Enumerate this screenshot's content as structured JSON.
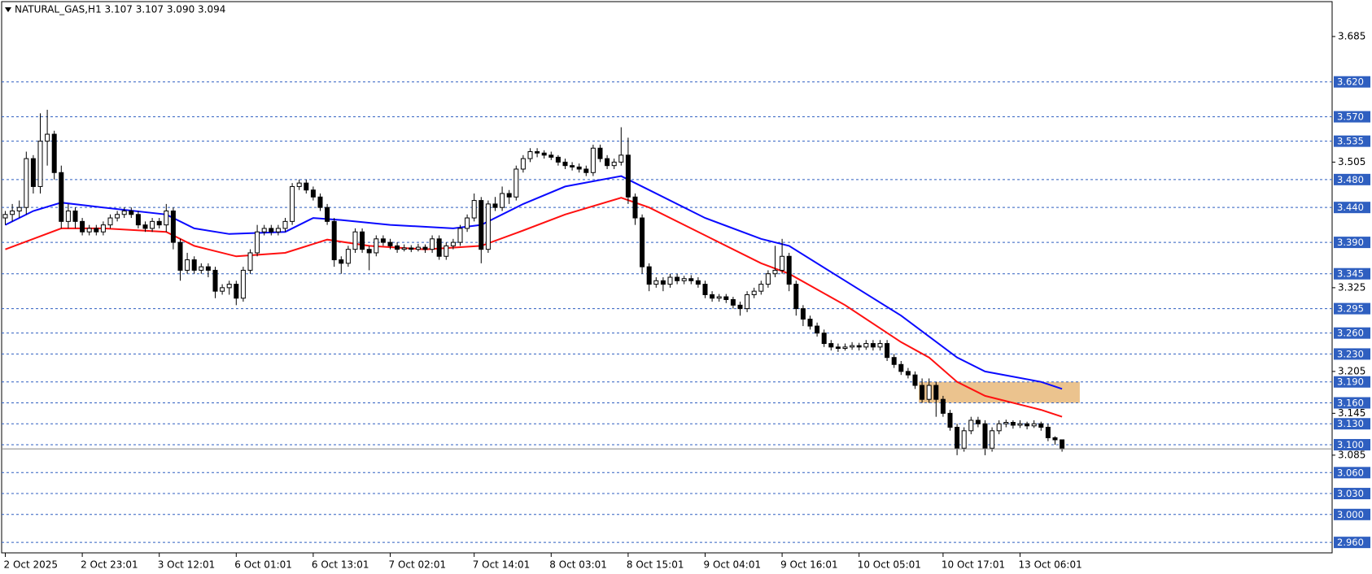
{
  "chart_data": {
    "type": "candlestick",
    "title": "NATURAL_GAS,H1 3.107 3.107 3.090 3.094",
    "ylim": [
      2.945,
      3.735
    ],
    "yticks": [
      3.085,
      3.145,
      3.205,
      3.325,
      3.505,
      3.685
    ],
    "levels": [
      {
        "value": 3.62,
        "label": "3.620"
      },
      {
        "value": 3.57,
        "label": "3.570"
      },
      3.535,
      {
        "value": 3.48,
        "label": "3.480"
      },
      {
        "value": 3.44,
        "label": "3.440"
      },
      {
        "value": 3.39,
        "label": "3.390"
      },
      3.345,
      3.295,
      {
        "value": 3.26,
        "label": "3.260"
      },
      {
        "value": 3.23,
        "label": "3.230"
      },
      {
        "value": 3.19,
        "label": "3.190"
      },
      {
        "value": 3.16,
        "label": "3.160"
      },
      {
        "value": 3.13,
        "label": "3.130"
      },
      {
        "value": 3.1,
        "label": "3.100"
      },
      {
        "value": 3.06,
        "label": "3.060"
      },
      {
        "value": 3.03,
        "label": "3.030"
      },
      {
        "value": 3,
        "label": "3.000"
      },
      {
        "value": 2.96,
        "label": "2.960"
      }
    ],
    "level_color": "#2f5fc0",
    "xticks": [
      {
        "value": 0,
        "label": "2 Oct 2025"
      },
      {
        "value": 11,
        "label": "2 Oct 23:01"
      },
      {
        "value": 22,
        "label": "3 Oct 12:01"
      },
      {
        "value": 33,
        "label": "6 Oct 01:01"
      },
      {
        "value": 44,
        "label": "6 Oct 13:01"
      },
      {
        "value": 55,
        "label": "7 Oct 02:01"
      },
      {
        "value": 67,
        "label": "7 Oct 14:01"
      },
      {
        "value": 78,
        "label": "8 Oct 03:01"
      },
      {
        "value": 89,
        "label": "8 Oct 15:01"
      },
      {
        "value": 100,
        "label": "9 Oct 04:01"
      },
      {
        "value": 111,
        "label": "9 Oct 16:01"
      },
      {
        "value": 122,
        "label": "10 Oct 05:01"
      },
      {
        "value": 134,
        "label": "10 Oct 17:01"
      },
      {
        "value": 145,
        "label": "13 Oct 06:01"
      }
    ],
    "zone": {
      "low": 3.16,
      "high": 3.19,
      "x_start": 131,
      "x_end": 154,
      "color": "#e8b87a"
    },
    "lines": [
      {
        "color": "#0a0aff",
        "x": [
          0,
          4,
          8,
          14,
          23,
          27,
          32,
          40,
          44,
          48,
          55,
          64,
          68,
          74,
          80,
          88,
          92,
          100,
          108,
          112,
          120,
          128,
          132,
          136,
          140,
          148,
          151
        ],
        "values": [
          3.415,
          3.435,
          3.447,
          3.44,
          3.43,
          3.41,
          3.402,
          3.405,
          3.425,
          3.422,
          3.415,
          3.41,
          3.415,
          3.445,
          3.47,
          3.485,
          3.465,
          3.425,
          3.395,
          3.385,
          3.335,
          3.285,
          3.255,
          3.225,
          3.205,
          3.19,
          3.18
        ]
      },
      {
        "color": "#ff1010",
        "x": [
          0,
          4,
          8,
          14,
          23,
          27,
          33,
          40,
          46,
          52,
          60,
          68,
          74,
          80,
          88,
          92,
          100,
          108,
          112,
          120,
          128,
          132,
          136,
          140,
          148,
          151
        ],
        "values": [
          3.38,
          3.395,
          3.41,
          3.41,
          3.405,
          3.385,
          3.37,
          3.375,
          3.394,
          3.385,
          3.38,
          3.385,
          3.407,
          3.43,
          3.454,
          3.44,
          3.4,
          3.36,
          3.345,
          3.3,
          3.247,
          3.225,
          3.19,
          3.17,
          3.15,
          3.14
        ]
      }
    ],
    "ohlc": [
      [
        3.425,
        3.435,
        3.415,
        3.43
      ],
      [
        3.43,
        3.445,
        3.42,
        3.435
      ],
      [
        3.435,
        3.45,
        3.425,
        3.44
      ],
      [
        3.44,
        3.52,
        3.43,
        3.51
      ],
      [
        3.51,
        3.515,
        3.46,
        3.47
      ],
      [
        3.47,
        3.575,
        3.46,
        3.535
      ],
      [
        3.535,
        3.58,
        3.5,
        3.545
      ],
      [
        3.545,
        3.55,
        3.48,
        3.49
      ],
      [
        3.49,
        3.5,
        3.41,
        3.42
      ],
      [
        3.42,
        3.445,
        3.41,
        3.435
      ],
      [
        3.435,
        3.44,
        3.41,
        3.42
      ],
      [
        3.42,
        3.425,
        3.4,
        3.405
      ],
      [
        3.405,
        3.415,
        3.4,
        3.41
      ],
      [
        3.41,
        3.415,
        3.4,
        3.405
      ],
      [
        3.405,
        3.42,
        3.4,
        3.415
      ],
      [
        3.415,
        3.43,
        3.41,
        3.425
      ],
      [
        3.425,
        3.435,
        3.42,
        3.43
      ],
      [
        3.43,
        3.44,
        3.425,
        3.435
      ],
      [
        3.435,
        3.44,
        3.425,
        3.43
      ],
      [
        3.43,
        3.435,
        3.41,
        3.415
      ],
      [
        3.415,
        3.42,
        3.405,
        3.41
      ],
      [
        3.41,
        3.425,
        3.405,
        3.42
      ],
      [
        3.42,
        3.425,
        3.41,
        3.415
      ],
      [
        3.415,
        3.445,
        3.405,
        3.435
      ],
      [
        3.435,
        3.44,
        3.38,
        3.39
      ],
      [
        3.39,
        3.395,
        3.335,
        3.35
      ],
      [
        3.35,
        3.375,
        3.345,
        3.365
      ],
      [
        3.365,
        3.37,
        3.345,
        3.35
      ],
      [
        3.35,
        3.36,
        3.345,
        3.355
      ],
      [
        3.355,
        3.36,
        3.34,
        3.35
      ],
      [
        3.35,
        3.355,
        3.31,
        3.32
      ],
      [
        3.32,
        3.33,
        3.315,
        3.325
      ],
      [
        3.325,
        3.335,
        3.315,
        3.33
      ],
      [
        3.33,
        3.335,
        3.3,
        3.31
      ],
      [
        3.31,
        3.355,
        3.305,
        3.35
      ],
      [
        3.35,
        3.38,
        3.345,
        3.375
      ],
      [
        3.375,
        3.415,
        3.37,
        3.405
      ],
      [
        3.405,
        3.415,
        3.4,
        3.41
      ],
      [
        3.41,
        3.415,
        3.4,
        3.405
      ],
      [
        3.405,
        3.415,
        3.4,
        3.41
      ],
      [
        3.41,
        3.425,
        3.405,
        3.42
      ],
      [
        3.42,
        3.475,
        3.415,
        3.47
      ],
      [
        3.47,
        3.48,
        3.465,
        3.475
      ],
      [
        3.475,
        3.48,
        3.46,
        3.465
      ],
      [
        3.465,
        3.47,
        3.45,
        3.455
      ],
      [
        3.455,
        3.46,
        3.435,
        3.44
      ],
      [
        3.44,
        3.445,
        3.415,
        3.42
      ],
      [
        3.42,
        3.425,
        3.355,
        3.365
      ],
      [
        3.365,
        3.37,
        3.345,
        3.36
      ],
      [
        3.36,
        3.385,
        3.355,
        3.38
      ],
      [
        3.38,
        3.41,
        3.375,
        3.405
      ],
      [
        3.405,
        3.41,
        3.375,
        3.38
      ],
      [
        3.38,
        3.385,
        3.35,
        3.375
      ],
      [
        3.375,
        3.4,
        3.37,
        3.395
      ],
      [
        3.395,
        3.4,
        3.385,
        3.39
      ],
      [
        3.39,
        3.395,
        3.38,
        3.385
      ],
      [
        3.385,
        3.39,
        3.375,
        3.38
      ],
      [
        3.38,
        3.387,
        3.377,
        3.382
      ],
      [
        3.382,
        3.386,
        3.376,
        3.38
      ],
      [
        3.38,
        3.388,
        3.377,
        3.383
      ],
      [
        3.383,
        3.387,
        3.375,
        3.38
      ],
      [
        3.38,
        3.4,
        3.375,
        3.395
      ],
      [
        3.395,
        3.4,
        3.365,
        3.37
      ],
      [
        3.37,
        3.39,
        3.365,
        3.385
      ],
      [
        3.385,
        3.395,
        3.38,
        3.39
      ],
      [
        3.39,
        3.415,
        3.385,
        3.41
      ],
      [
        3.41,
        3.43,
        3.405,
        3.425
      ],
      [
        3.425,
        3.46,
        3.42,
        3.45
      ],
      [
        3.45,
        3.455,
        3.36,
        3.38
      ],
      [
        3.38,
        3.45,
        3.375,
        3.445
      ],
      [
        3.445,
        3.455,
        3.435,
        3.44
      ],
      [
        3.44,
        3.47,
        3.435,
        3.46
      ],
      [
        3.46,
        3.465,
        3.445,
        3.455
      ],
      [
        3.455,
        3.5,
        3.45,
        3.495
      ],
      [
        3.495,
        3.515,
        3.49,
        3.51
      ],
      [
        3.51,
        3.525,
        3.505,
        3.52
      ],
      [
        3.52,
        3.525,
        3.512,
        3.518
      ],
      [
        3.518,
        3.522,
        3.51,
        3.515
      ],
      [
        3.515,
        3.52,
        3.508,
        3.512
      ],
      [
        3.512,
        3.515,
        3.5,
        3.505
      ],
      [
        3.505,
        3.51,
        3.495,
        3.5
      ],
      [
        3.5,
        3.505,
        3.493,
        3.498
      ],
      [
        3.498,
        3.503,
        3.49,
        3.495
      ],
      [
        3.495,
        3.5,
        3.485,
        3.49
      ],
      [
        3.49,
        3.53,
        3.485,
        3.525
      ],
      [
        3.525,
        3.53,
        3.505,
        3.51
      ],
      [
        3.51,
        3.515,
        3.495,
        3.5
      ],
      [
        3.5,
        3.51,
        3.495,
        3.505
      ],
      [
        3.505,
        3.555,
        3.5,
        3.515
      ],
      [
        3.515,
        3.54,
        3.445,
        3.455
      ],
      [
        3.455,
        3.46,
        3.415,
        3.425
      ],
      [
        3.425,
        3.43,
        3.345,
        3.355
      ],
      [
        3.355,
        3.36,
        3.32,
        3.33
      ],
      [
        3.33,
        3.34,
        3.325,
        3.335
      ],
      [
        3.335,
        3.34,
        3.32,
        3.33
      ],
      [
        3.33,
        3.345,
        3.325,
        3.34
      ],
      [
        3.34,
        3.345,
        3.33,
        3.335
      ],
      [
        3.335,
        3.342,
        3.33,
        3.338
      ],
      [
        3.338,
        3.343,
        3.33,
        3.335
      ],
      [
        3.335,
        3.34,
        3.325,
        3.33
      ],
      [
        3.33,
        3.335,
        3.31,
        3.315
      ],
      [
        3.315,
        3.32,
        3.305,
        3.31
      ],
      [
        3.31,
        3.316,
        3.305,
        3.312
      ],
      [
        3.312,
        3.316,
        3.303,
        3.308
      ],
      [
        3.308,
        3.312,
        3.295,
        3.3
      ],
      [
        3.3,
        3.305,
        3.285,
        3.295
      ],
      [
        3.295,
        3.32,
        3.29,
        3.315
      ],
      [
        3.315,
        3.325,
        3.31,
        3.32
      ],
      [
        3.32,
        3.335,
        3.315,
        3.33
      ],
      [
        3.33,
        3.35,
        3.325,
        3.345
      ],
      [
        3.345,
        3.385,
        3.34,
        3.35
      ],
      [
        3.35,
        3.395,
        3.345,
        3.37
      ],
      [
        3.37,
        3.375,
        3.32,
        3.33
      ],
      [
        3.33,
        3.335,
        3.285,
        3.295
      ],
      [
        3.295,
        3.3,
        3.27,
        3.28
      ],
      [
        3.28,
        3.285,
        3.265,
        3.27
      ],
      [
        3.27,
        3.275,
        3.255,
        3.26
      ],
      [
        3.26,
        3.265,
        3.24,
        3.245
      ],
      [
        3.245,
        3.25,
        3.235,
        3.24
      ],
      [
        3.24,
        3.245,
        3.233,
        3.238
      ],
      [
        3.238,
        3.245,
        3.235,
        3.24
      ],
      [
        3.24,
        3.247,
        3.236,
        3.242
      ],
      [
        3.242,
        3.246,
        3.235,
        3.24
      ],
      [
        3.24,
        3.25,
        3.236,
        3.245
      ],
      [
        3.245,
        3.25,
        3.235,
        3.24
      ],
      [
        3.24,
        3.25,
        3.235,
        3.245
      ],
      [
        3.245,
        3.25,
        3.22,
        3.225
      ],
      [
        3.225,
        3.23,
        3.21,
        3.215
      ],
      [
        3.215,
        3.22,
        3.2,
        3.205
      ],
      [
        3.205,
        3.21,
        3.195,
        3.2
      ],
      [
        3.2,
        3.205,
        3.18,
        3.185
      ],
      [
        3.185,
        3.195,
        3.16,
        3.165
      ],
      [
        3.165,
        3.195,
        3.16,
        3.185
      ],
      [
        3.185,
        3.19,
        3.14,
        3.165
      ],
      [
        3.165,
        3.17,
        3.14,
        3.145
      ],
      [
        3.145,
        3.15,
        3.12,
        3.125
      ],
      [
        3.125,
        3.13,
        3.085,
        3.095
      ],
      [
        3.095,
        3.125,
        3.09,
        3.12
      ],
      [
        3.12,
        3.14,
        3.115,
        3.135
      ],
      [
        3.135,
        3.14,
        3.125,
        3.13
      ],
      [
        3.13,
        3.135,
        3.085,
        3.095
      ],
      [
        3.095,
        3.125,
        3.09,
        3.12
      ],
      [
        3.12,
        3.135,
        3.115,
        3.13
      ],
      [
        3.13,
        3.136,
        3.125,
        3.132
      ],
      [
        3.132,
        3.135,
        3.123,
        3.128
      ],
      [
        3.128,
        3.135,
        3.124,
        3.13
      ],
      [
        3.13,
        3.133,
        3.122,
        3.127
      ],
      [
        3.127,
        3.135,
        3.124,
        3.13
      ],
      [
        3.13,
        3.133,
        3.12,
        3.125
      ],
      [
        3.125,
        3.13,
        3.105,
        3.11
      ],
      [
        3.11,
        3.112,
        3.1,
        3.107
      ],
      [
        3.107,
        3.107,
        3.09,
        3.094
      ]
    ]
  }
}
